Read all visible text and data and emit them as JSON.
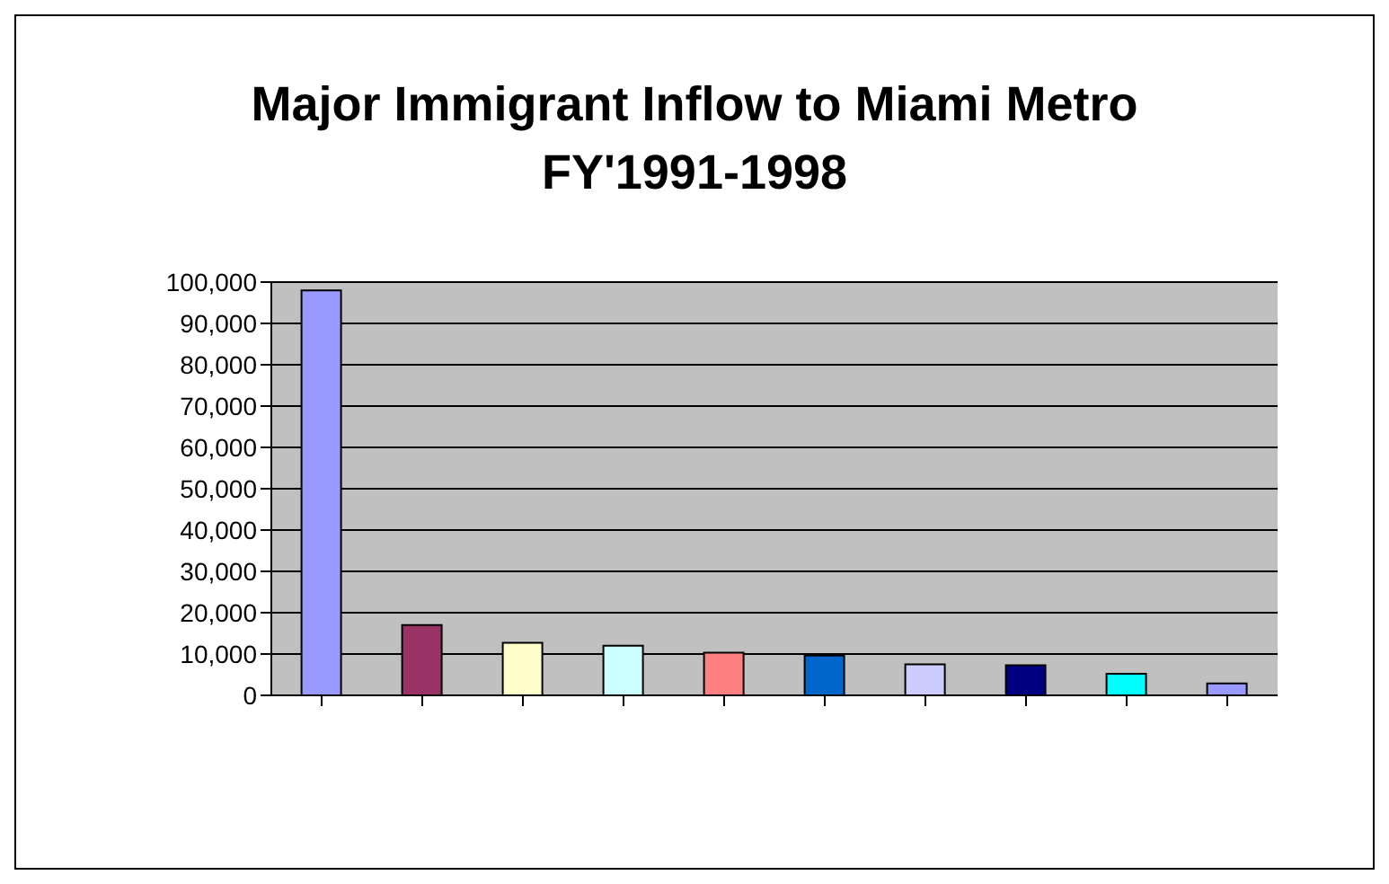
{
  "chart_data": {
    "type": "bar",
    "title": "Major Immigrant Inflow to Miami Metro FY'1991-1998",
    "categories": [
      null,
      null,
      null,
      null,
      null,
      null,
      null,
      null,
      null,
      null
    ],
    "values": [
      98000,
      17000,
      12700,
      12000,
      10300,
      9600,
      7500,
      7300,
      5200,
      2900
    ],
    "colors": [
      "#9999ff",
      "#993366",
      "#ffffcc",
      "#ccffff",
      "#ff8080",
      "#0066cc",
      "#ccccff",
      "#000080",
      "#00ffff",
      "#9999ff"
    ],
    "ylim": [
      0,
      100000
    ],
    "yticks": [
      0,
      {
        "value": 10000,
        "label": "10,000"
      },
      {
        "value": 20000,
        "label": "20,000"
      },
      {
        "value": 30000,
        "label": "30,000"
      },
      {
        "value": 40000,
        "label": "40,000"
      },
      {
        "value": 50000,
        "label": "50,000"
      },
      {
        "value": 60000,
        "label": "60,000"
      },
      {
        "value": 70000,
        "label": "70,000"
      },
      {
        "value": 80000,
        "label": "80,000"
      },
      {
        "value": 90000,
        "label": "90,000"
      },
      {
        "value": 100000,
        "label": "100,000"
      }
    ],
    "grid": "y"
  }
}
